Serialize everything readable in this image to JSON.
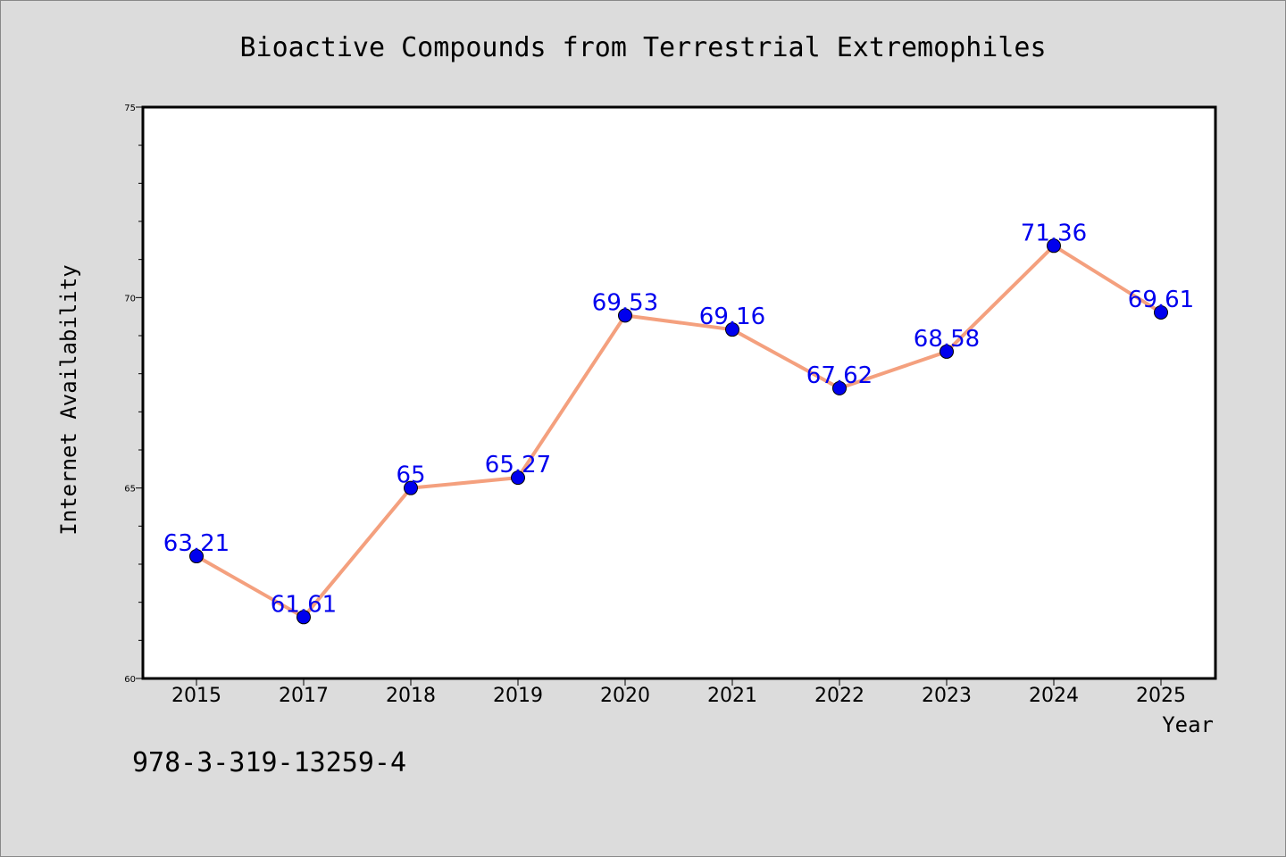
{
  "chart_data": {
    "type": "line",
    "title": "Bioactive Compounds from Terrestrial Extremophiles",
    "xlabel": "Year",
    "ylabel": "Internet Availability",
    "categories": [
      "2015",
      "2017",
      "2018",
      "2019",
      "2020",
      "2021",
      "2022",
      "2023",
      "2024",
      "2025"
    ],
    "values": [
      63.21,
      61.61,
      65,
      65.27,
      69.53,
      69.16,
      67.62,
      68.58,
      71.36,
      69.61
    ],
    "value_labels": [
      "63.21",
      "61.61",
      "65",
      "65.27",
      "69.53",
      "69.16",
      "67.62",
      "68.58",
      "71.36",
      "69.61"
    ],
    "ylim": [
      60,
      75
    ],
    "yticks": [
      "60",
      "65",
      "70",
      "75"
    ],
    "grid": false,
    "colors": {
      "line": "#f4a07e",
      "marker": "#0000ee",
      "label": "#0000ee",
      "plot_bg": "#ffffff",
      "figure_bg": "#dcdcdc"
    }
  },
  "footnote": "978-3-319-13259-4"
}
